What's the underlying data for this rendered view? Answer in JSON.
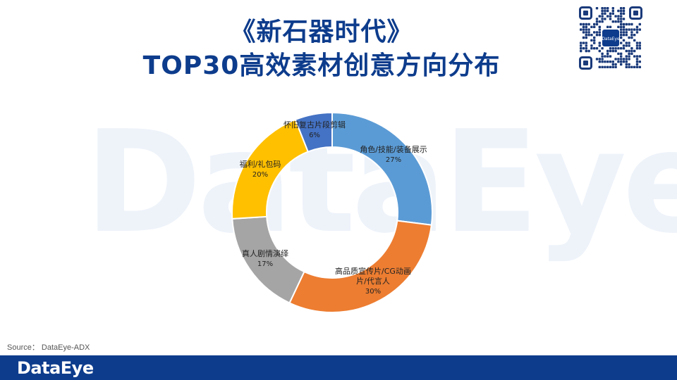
{
  "header": {
    "title_line1": "《新石器时代》",
    "title_line2": "TOP30高效素材创意方向分布"
  },
  "watermark": {
    "text": "DataEye"
  },
  "qr": {
    "center_label": "DataEye"
  },
  "source": {
    "text": "Source： DataEye-ADX"
  },
  "footer": {
    "logo": "DataEye"
  },
  "chart_data": {
    "type": "pie",
    "variant": "donut",
    "title": "",
    "slices": [
      {
        "label": "角色/技能/装备展示",
        "value": 27,
        "display": "27%",
        "color": "#5b9bd5"
      },
      {
        "label": "高品质宣传片/CG动画片/代言人",
        "value": 30,
        "display": "30%",
        "color": "#ed7d31"
      },
      {
        "label": "真人剧情演绎",
        "value": 17,
        "display": "17%",
        "color": "#a5a5a5"
      },
      {
        "label": "福利/礼包码",
        "value": 20,
        "display": "20%",
        "color": "#ffc000"
      },
      {
        "label": "怀旧复古片段剪辑",
        "value": 6,
        "display": "6%",
        "color": "#4472c4"
      }
    ],
    "legend": "none",
    "start": "top",
    "direction": "clockwise"
  }
}
